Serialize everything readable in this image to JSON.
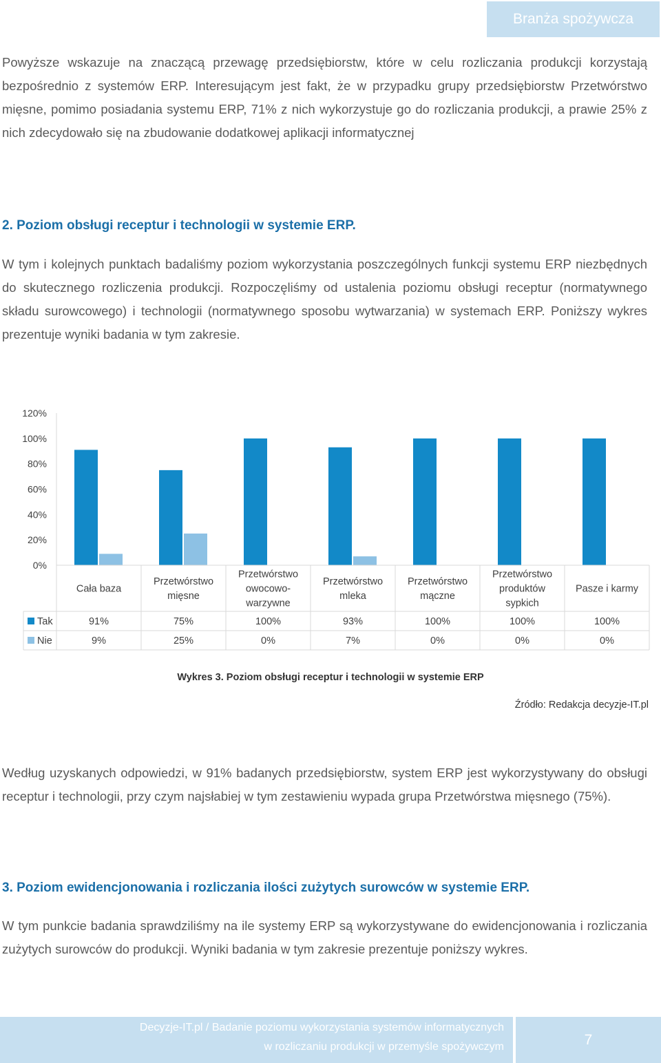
{
  "header": {
    "title": "Branża spożywcza"
  },
  "paragraphs": {
    "p1": "Powyższe wskazuje na znaczącą przewagę przedsiębiorstw, które w celu rozliczania produkcji korzystają bezpośrednio z systemów ERP. Interesującym jest fakt, że w przypadku grupy przedsiębiorstw Przetwórstwo mięsne, pomimo posiadania systemu ERP, 71% z nich wykorzystuje go do rozliczania produkcji, a prawie 25% z nich zdecydowało się na zbudowanie dodatkowej aplikacji informatycznej",
    "h2": "2. Poziom obsługi receptur i technologii w systemie ERP.",
    "p2": "W tym i kolejnych punktach badaliśmy poziom wykorzystania poszczególnych funkcji systemu ERP niezbędnych do skutecznego rozliczenia produkcji. Rozpoczęliśmy od ustalenia poziomu obsługi receptur (normatywnego składu surowcowego) i technologii (normatywnego sposobu wytwarzania) w systemach ERP. Poniższy wykres prezentuje wyniki badania w tym zakresie.",
    "p3": "Według uzyskanych odpowiedzi, w 91% badanych przedsiębiorstw, system ERP jest wykorzystywany do obsługi receptur i technologii, przy czym najsłabiej w tym zestawieniu wypada grupa Przetwórstwa mięsnego (75%).",
    "h3": "3. Poziom ewidencjonowania i rozliczania ilości zużytych surowców w systemie ERP.",
    "p4": "W tym punkcie badania sprawdziliśmy na ile systemy ERP są wykorzystywane do ewidencjonowania i rozliczania zużytych surowców do produkcji. Wyniki badania w tym zakresie prezentuje poniższy wykres."
  },
  "chart_data": {
    "type": "bar",
    "categories": [
      [
        "Cała baza"
      ],
      [
        "Przetwórstwo",
        "mięsne"
      ],
      [
        "Przetwórstwo",
        "owocowo-",
        "warzywne"
      ],
      [
        "Przetwórstwo",
        "mleka"
      ],
      [
        "Przetwórstwo",
        "mączne"
      ],
      [
        "Przetwórstwo",
        "produktów",
        "sypkich"
      ],
      [
        "Pasze i karmy"
      ]
    ],
    "series": [
      {
        "name": "Tak",
        "color": "#1289c8",
        "values": [
          91,
          75,
          100,
          93,
          100,
          100,
          100
        ],
        "labels": [
          "91%",
          "75%",
          "100%",
          "93%",
          "100%",
          "100%",
          "100%"
        ]
      },
      {
        "name": "Nie",
        "color": "#8dc1e4",
        "values": [
          9,
          25,
          0,
          7,
          0,
          0,
          0
        ],
        "labels": [
          "9%",
          "25%",
          "0%",
          "7%",
          "0%",
          "0%",
          "0%"
        ]
      }
    ],
    "yticks": [
      "0%",
      "20%",
      "40%",
      "60%",
      "80%",
      "100%",
      "120%"
    ],
    "ylim": [
      0,
      120
    ],
    "grid": false,
    "legend": "data-table"
  },
  "caption": "Wykres 3. Poziom obsługi receptur i technologii  w systemie ERP",
  "source": "Źródło: Redakcja decyzje-IT.pl",
  "footer": {
    "line1": "Decyzje-IT.pl / Badanie poziomu wykorzystania systemów informatycznych",
    "line2": "w rozliczaniu produkcji w przemyśle spożywczym",
    "page": "7"
  }
}
